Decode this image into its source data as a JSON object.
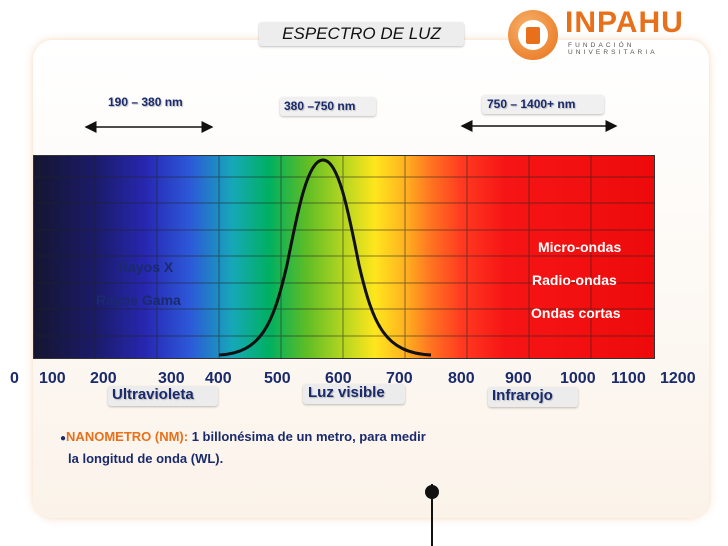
{
  "title": "ESPECTRO DE LUZ",
  "logo": {
    "name": "INPAHU",
    "subtitle": "FUNDACIÓN UNIVERSITARIA",
    "icon": "inpahu-logo-icon"
  },
  "ranges": [
    {
      "label": "190 – 380 nm"
    },
    {
      "label": "380 –750 nm"
    },
    {
      "label": "750 – 1400+ nm"
    }
  ],
  "inside_left": [
    "Rayos X",
    "Rayos Gama"
  ],
  "inside_right": [
    "Micro-ondas",
    "Radio-ondas",
    "Ondas cortas"
  ],
  "axis_ticks": [
    "0",
    "100",
    "200",
    "300",
    "400",
    "500",
    "600",
    "700",
    "800",
    "900",
    "1000",
    "1100",
    "1200"
  ],
  "bands": {
    "uv": "Ultravioleta",
    "visible": "Luz visible",
    "ir": "Infrarojo"
  },
  "note": {
    "bullet": "●",
    "term": "NANOMETRO (NM):",
    "text1": " 1 billonésima de un metro, para medir",
    "text2": "la longitud de onda (WL)."
  },
  "colors": {
    "accent": "#e8701a",
    "text": "#1a2a6c"
  }
}
